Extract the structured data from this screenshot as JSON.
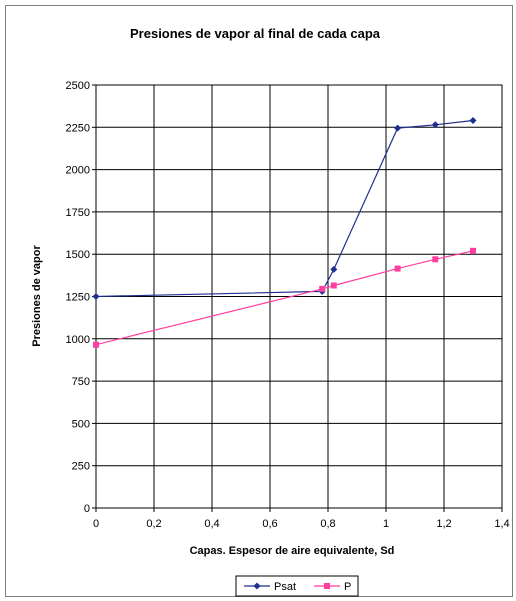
{
  "chart_data": {
    "type": "line",
    "title": "Presiones de vapor al final de cada capa",
    "xlabel": "Capas. Espesor de aire equivalente, Sd",
    "ylabel": "Presiones de vapor",
    "xlim": [
      0,
      1.4
    ],
    "ylim": [
      0,
      2500
    ],
    "x_ticks": [
      "0",
      "0,2",
      "0,4",
      "0,6",
      "0,8",
      "1",
      "1,2",
      "1,4"
    ],
    "y_ticks": [
      "0",
      "250",
      "500",
      "750",
      "1000",
      "1250",
      "1500",
      "1750",
      "2000",
      "2250",
      "2500"
    ],
    "grid": true,
    "legend_position": "bottom",
    "series": [
      {
        "name": "Psat",
        "color": "#1f2f8f",
        "marker": "diamond",
        "points": [
          [
            0,
            1250
          ],
          [
            0.78,
            1280
          ],
          [
            0.82,
            1410
          ],
          [
            1.04,
            2245
          ],
          [
            1.17,
            2265
          ],
          [
            1.3,
            2290
          ]
        ]
      },
      {
        "name": "P",
        "color": "#ff3fa0",
        "marker": "square",
        "points": [
          [
            0,
            965
          ],
          [
            0.78,
            1295
          ],
          [
            0.82,
            1315
          ],
          [
            1.04,
            1415
          ],
          [
            1.17,
            1470
          ],
          [
            1.3,
            1520
          ]
        ]
      }
    ]
  }
}
